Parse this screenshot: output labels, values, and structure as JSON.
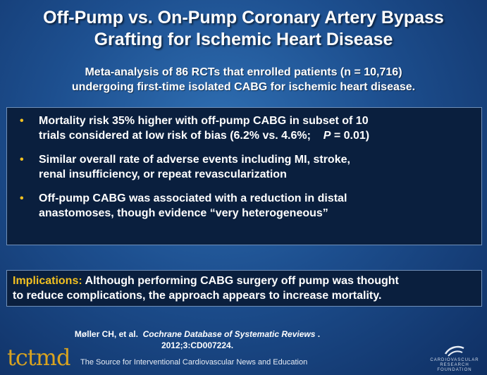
{
  "slide": {
    "title_line1": "Off-Pump vs. On-Pump Coronary Artery Bypass",
    "title_line2": "Grafting for Ischemic Heart Disease",
    "subtitle_line1": "Meta-analysis of 86 RCTs that enrolled patients (n = 10,716)",
    "subtitle_line2": "undergoing first-time isolated CABG for ischemic heart disease.",
    "bullets": [
      {
        "line1": "Mortality risk 35% higher with off-pump CABG in subset of 10",
        "line2_a": "trials considered at low risk of bias (6.2% vs. 4.6%;",
        "line2_p": "P",
        "line2_b": "= 0.01)"
      },
      {
        "line1": "Similar overall rate of adverse events including MI, stroke,",
        "line2": "renal insufficiency, or repeat revascularization"
      },
      {
        "line1": "Off-pump CABG was associated with a reduction in distal",
        "line2": "anastomoses, though evidence “very heterogeneous”"
      }
    ],
    "bullet_marker": "•",
    "implications_label": "Implications:",
    "implications_text_line1": "Although performing CABG surgery off pump was thought",
    "implications_text_line2": "to reduce complications, the approach appears to increase mortality.",
    "citation_authors": "Møller CH, et al.",
    "citation_journal": "Cochrane Database of Systematic Reviews",
    "citation_end": ".",
    "citation_line2": "2012;3:CD007224."
  },
  "footer": {
    "logo_text": "tctmd",
    "tagline": "The Source for Interventional Cardiovascular News and Education",
    "crf_line1": "CARDIOVASCULAR RESEARCH",
    "crf_line2": "FOUNDATION"
  },
  "colors": {
    "accent": "#f2c021",
    "box_bg": "#0a1f3e"
  }
}
